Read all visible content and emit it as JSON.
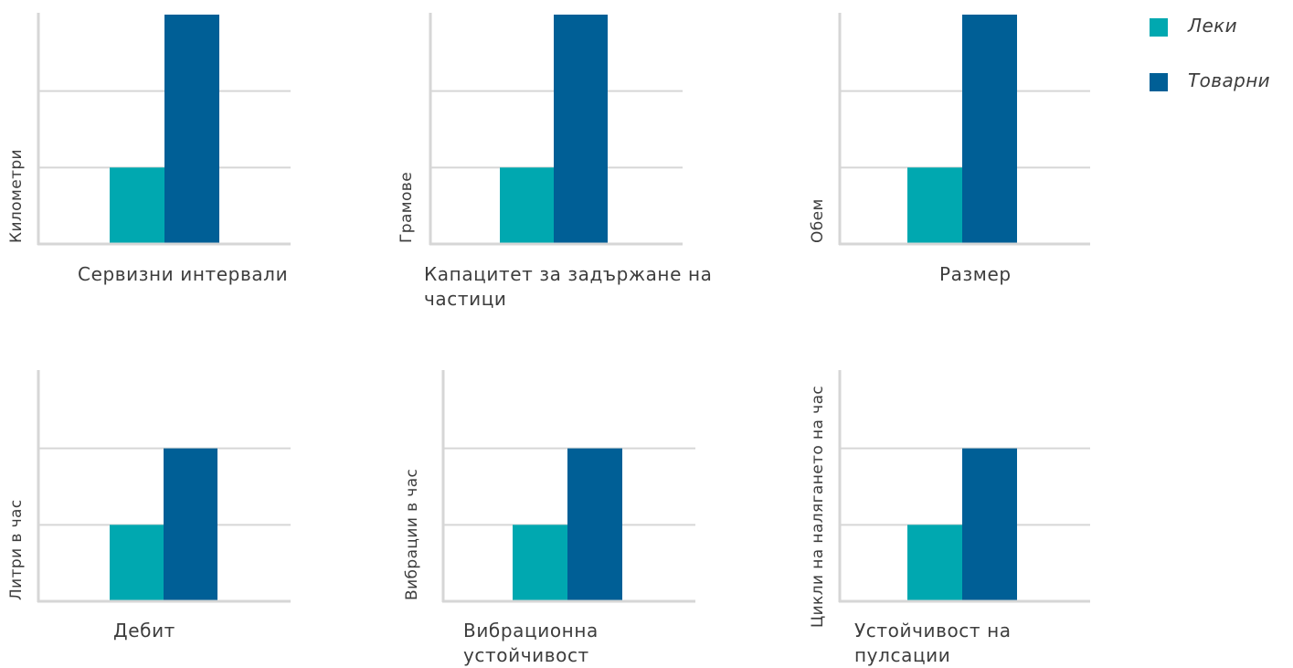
{
  "chart_data": [
    {
      "type": "bar",
      "categories": [
        "Сервизни интервали"
      ],
      "series": [
        {
          "name": "Леки",
          "values": [
            1
          ]
        },
        {
          "name": "Товарни",
          "values": [
            3
          ]
        }
      ],
      "title": "",
      "xlabel": "Сервизни интервали",
      "ylabel": "Километри",
      "ylim": [
        0,
        3
      ],
      "grid": true
    },
    {
      "type": "bar",
      "categories": [
        "Капацитет за задържане на частици"
      ],
      "series": [
        {
          "name": "Леки",
          "values": [
            1
          ]
        },
        {
          "name": "Товарни",
          "values": [
            3
          ]
        }
      ],
      "title": "",
      "xlabel": "Капацитет за задържане на частици",
      "ylabel": "Грамове",
      "ylim": [
        0,
        3
      ],
      "grid": true
    },
    {
      "type": "bar",
      "categories": [
        "Размер"
      ],
      "series": [
        {
          "name": "Леки",
          "values": [
            1
          ]
        },
        {
          "name": "Товарни",
          "values": [
            3
          ]
        }
      ],
      "title": "",
      "xlabel": "Размер",
      "ylabel": "Обем",
      "ylim": [
        0,
        3
      ],
      "grid": true
    },
    {
      "type": "bar",
      "categories": [
        "Дебит"
      ],
      "series": [
        {
          "name": "Леки",
          "values": [
            1
          ]
        },
        {
          "name": "Товарни",
          "values": [
            2
          ]
        }
      ],
      "title": "",
      "xlabel": "Дебит",
      "ylabel": "Литри в час",
      "ylim": [
        0,
        3
      ],
      "grid": true
    },
    {
      "type": "bar",
      "categories": [
        "Вибрационна устойчивост"
      ],
      "series": [
        {
          "name": "Леки",
          "values": [
            1
          ]
        },
        {
          "name": "Товарни",
          "values": [
            2
          ]
        }
      ],
      "title": "",
      "xlabel": "Вибрационна устойчивост",
      "ylabel": "Вибрации в час",
      "ylim": [
        0,
        3
      ],
      "grid": true
    },
    {
      "type": "bar",
      "categories": [
        "Устойчивост на пулсации"
      ],
      "series": [
        {
          "name": "Леки",
          "values": [
            1
          ]
        },
        {
          "name": "Товарни",
          "values": [
            2
          ]
        }
      ],
      "title": "",
      "xlabel": "Устойчивост на пулсации",
      "ylabel": "Цикли на налягането на час",
      "ylim": [
        0,
        3
      ],
      "grid": true
    }
  ],
  "legend": {
    "placement": "top-right",
    "items": [
      {
        "label": "Леки",
        "color": "#00a8b0"
      },
      {
        "label": "Товарни",
        "color": "#005f96"
      }
    ]
  },
  "colors": {
    "axis": "#d6d6d6",
    "grid": "#d6d6d6",
    "text": "#3d3d3d"
  }
}
